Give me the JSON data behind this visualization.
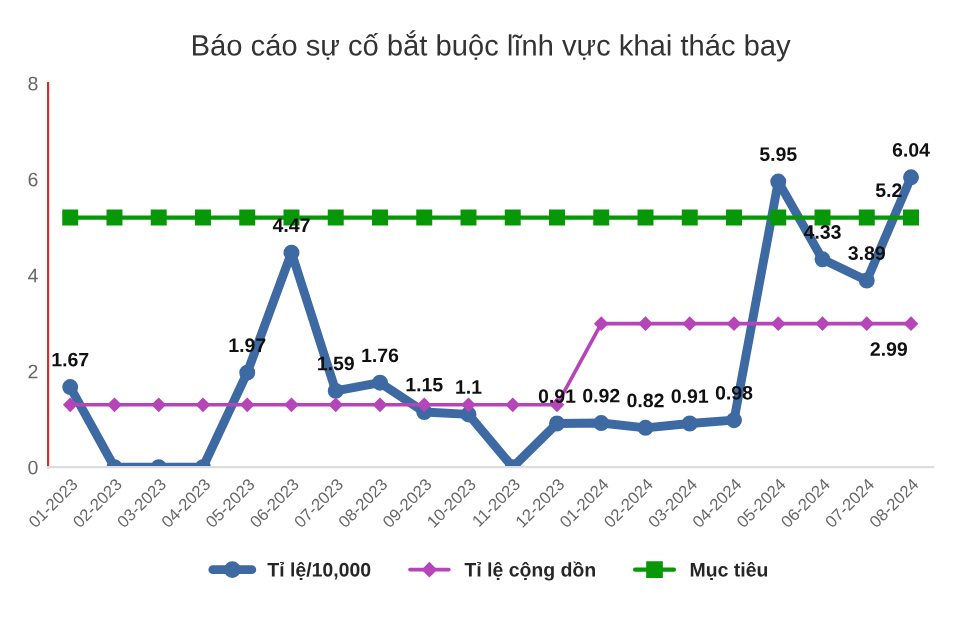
{
  "chart_data": {
    "type": "line",
    "title": "Báo cáo sự cố bắt buộc lĩnh vực khai thác bay",
    "categories": [
      "01-2023",
      "02-2023",
      "03-2023",
      "04-2023",
      "05-2023",
      "06-2023",
      "07-2023",
      "08-2023",
      "09-2023",
      "10-2023",
      "11-2023",
      "12-2023",
      "01-2024",
      "02-2024",
      "03-2024",
      "04-2024",
      "05-2024",
      "06-2024",
      "07-2024",
      "08-2024"
    ],
    "series": [
      {
        "name": "Tỉ lệ/10,000",
        "color": "#3d6aa3",
        "marker": "circle",
        "values": [
          1.67,
          0,
          0,
          0,
          1.97,
          4.47,
          1.59,
          1.76,
          1.15,
          1.1,
          0,
          0.91,
          0.92,
          0.82,
          0.91,
          0.98,
          5.95,
          4.33,
          3.89,
          6.04
        ],
        "value_labels": [
          "1.67",
          null,
          null,
          null,
          "1.97",
          "4.47",
          "1.59",
          "1.76",
          "1.15",
          "1.1",
          null,
          "0.91",
          "0.92",
          "0.82",
          "0.91",
          "0.98",
          "5.95",
          "4.33",
          "3.89",
          "6.04"
        ]
      },
      {
        "name": "Tỉ lệ cộng dồn",
        "color": "#b545b8",
        "marker": "diamond",
        "values": [
          1.3,
          1.3,
          1.3,
          1.3,
          1.3,
          1.3,
          1.3,
          1.3,
          1.3,
          1.3,
          1.3,
          1.3,
          2.99,
          2.99,
          2.99,
          2.99,
          2.99,
          2.99,
          2.99,
          2.99
        ],
        "value_labels": [
          null,
          null,
          null,
          null,
          null,
          null,
          null,
          null,
          null,
          null,
          null,
          null,
          null,
          null,
          null,
          null,
          null,
          null,
          null,
          "2.99"
        ]
      },
      {
        "name": "Mục tiêu",
        "color": "#079707",
        "marker": "square",
        "values": [
          5.2,
          5.2,
          5.2,
          5.2,
          5.2,
          5.2,
          5.2,
          5.2,
          5.2,
          5.2,
          5.2,
          5.2,
          5.2,
          5.2,
          5.2,
          5.2,
          5.2,
          5.2,
          5.2,
          5.2
        ],
        "value_labels": [
          null,
          null,
          null,
          null,
          null,
          null,
          null,
          null,
          null,
          null,
          null,
          null,
          null,
          null,
          null,
          null,
          null,
          null,
          null,
          "5.2"
        ]
      }
    ],
    "ylim": [
      0,
      8
    ],
    "yticks": [
      0,
      2,
      4,
      6,
      8
    ],
    "grid": false,
    "legend": "bottom",
    "line_style": "solid"
  }
}
